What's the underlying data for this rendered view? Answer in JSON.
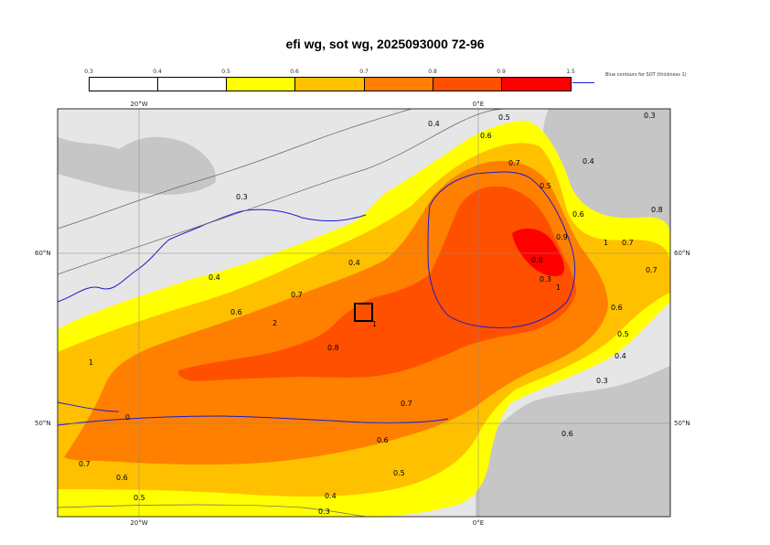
{
  "title": "efi wg, sot wg, 2025093000 72-96",
  "colorbar": {
    "ticks": [
      "0.3",
      "0.4",
      "0.5",
      "0.6",
      "0.7",
      "0.8",
      "0.9",
      "1.5"
    ],
    "colors": [
      "#ffffff",
      "#ffffff",
      "#ffff00",
      "#ffc000",
      "#ff8000",
      "#ff5000",
      "#ff0000"
    ],
    "note": "Blue contours for SOT (thickness 1)"
  },
  "axes": {
    "lon_labels": [
      "20°W",
      "0°E"
    ],
    "lat_labels": [
      "60°N",
      "50°N"
    ]
  },
  "contour_labels": [
    "0.3",
    "0.4",
    "0.5",
    "0.6",
    "0.7",
    "0.8",
    "1",
    "0.4",
    "0.5",
    "0.6",
    "0.7",
    "0.8",
    "0.9",
    "1",
    "0.7",
    "0.6",
    "0.5",
    "0.4",
    "0.3",
    "0.3",
    "0.4",
    "0.8",
    "0.6",
    "0.6",
    "0.4",
    "0.3",
    "0.5",
    "0.6",
    "0.7",
    "1",
    "2",
    "0.7",
    "0.7",
    "0.6",
    "0.5",
    "0.4",
    "0.3",
    "1",
    "0"
  ],
  "colors": {
    "ocean": "#e6e6e6",
    "land": "#c6c6c6",
    "yellow": "#ffff00",
    "light_orange": "#ffc000",
    "orange": "#ff8000",
    "red_orange": "#ff5000",
    "red": "#ff0000",
    "sot_contour": "#1a1acc"
  }
}
